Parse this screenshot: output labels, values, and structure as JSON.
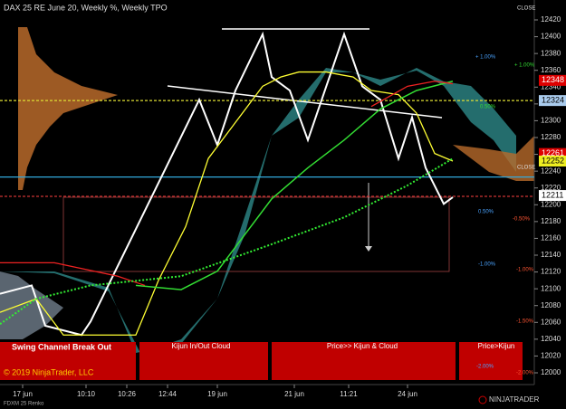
{
  "chart_data": {
    "type": "line",
    "title": "DAX 25 RE June 20, Weekly %, Weekly TPO",
    "xlim": [
      0,
      118
    ],
    "ylim": [
      12000,
      12420
    ],
    "xticks": [
      {
        "value": 5,
        "label": "17 jun"
      },
      {
        "value": 19,
        "label": "10:10"
      },
      {
        "value": 28,
        "label": "10:26"
      },
      {
        "value": 37,
        "label": "12:44"
      },
      {
        "value": 48,
        "label": "19 jun"
      },
      {
        "value": 65,
        "label": "21 jun"
      },
      {
        "value": 77,
        "label": "11:21"
      },
      {
        "value": 90,
        "label": "24 jun"
      }
    ],
    "yticks": [
      12000,
      12020,
      12040,
      12060,
      12080,
      12100,
      12120,
      12140,
      12160,
      12180,
      12200,
      12220,
      12240,
      12260,
      12280,
      12300,
      12320,
      12340,
      12360,
      12380,
      12400,
      12420
    ],
    "series": [
      {
        "color": "#ffffff",
        "width": 2,
        "x": [
          0,
          7,
          10,
          18,
          20,
          44,
          48,
          52,
          58,
          60,
          64,
          68,
          76,
          80,
          84,
          88,
          91,
          94,
          98,
          100
        ],
        "values": [
          12094,
          12104,
          12056,
          12045,
          12061,
          12325,
          12271,
          12336,
          12403,
          12352,
          12336,
          12277,
          12403,
          12341,
          12325,
          12255,
          12304,
          12244,
          12201,
          12209
        ]
      },
      {
        "color": "#ffff33",
        "width": 1.3,
        "x": [
          0,
          8,
          14,
          20,
          30,
          35,
          41,
          46,
          52,
          58,
          62,
          66,
          72,
          78,
          82,
          88,
          92,
          96,
          100
        ],
        "values": [
          12072,
          12088,
          12045,
          12045,
          12045,
          12110,
          12174,
          12255,
          12298,
          12341,
          12352,
          12358,
          12358,
          12352,
          12336,
          12331,
          12309,
          12261,
          12252
        ]
      },
      {
        "color": "#33dd33",
        "width": 1.5,
        "x": [
          30,
          40,
          48,
          54,
          60,
          68,
          76,
          84,
          92,
          100
        ],
        "values": [
          12104,
          12099,
          12121,
          12164,
          12207,
          12244,
          12277,
          12314,
          12336,
          12347
        ]
      },
      {
        "color": "#ee2222",
        "width": 1.3,
        "x": [
          0,
          12,
          26,
          32,
          null,
          82,
          90,
          96,
          100
        ],
        "values": [
          12131,
          12131,
          12115,
          12104,
          null,
          12317,
          12341,
          12347,
          12344
        ]
      },
      {
        "color": "#33ee33",
        "width": 2,
        "dash": true,
        "x": [
          0,
          8,
          20,
          40,
          60,
          76,
          90,
          100
        ],
        "values": [
          12058,
          12088,
          12104,
          12115,
          12153,
          12185,
          12223,
          12255
        ]
      }
    ],
    "levels": [
      {
        "value": 12233,
        "color": "#33aadd"
      },
      {
        "value": 12324,
        "color": "#dddd33"
      },
      {
        "value": 12210,
        "color": "#cc3333"
      }
    ],
    "price_tags": [
      {
        "value": 12348,
        "color": "#dd0000"
      },
      {
        "value": 12324,
        "color": "#aaccee"
      },
      {
        "value": 12261,
        "color": "#dd0000"
      },
      {
        "value": 12252,
        "color": "#eeee22"
      },
      {
        "value": 12211,
        "color": "#ffffff"
      }
    ],
    "boxes": [
      "Swing Channel Break Out",
      "Kijun In/Out Cloud",
      "Price>> Kijun & Cloud",
      "Price>Kijun"
    ],
    "percent_labels": [
      "+ 1.00%",
      "+ 1.00%",
      "0.50%",
      "0.50%",
      "-0.50%",
      "-1.00%",
      "-1.00%",
      "-1.50%",
      "-2.00%",
      "-2.00%"
    ],
    "copyright": "© 2019 NinjaTrader, LLC",
    "instrument": "FDXM 25 Renko",
    "logo": "NINJATRADER",
    "close_labels": [
      "CLOSE",
      "CLOSE"
    ]
  }
}
